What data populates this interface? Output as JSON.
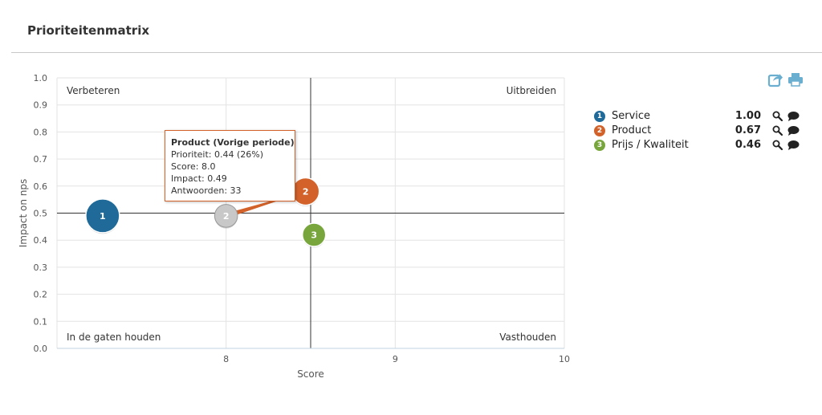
{
  "page": {
    "title": "Prioriteitenmatrix"
  },
  "colors": {
    "service": "#1f6a99",
    "product": "#d2622a",
    "product_previous": "#c8c8c8",
    "prijs_kwaliteit": "#78a63d",
    "toolbar": "#6aaed0"
  },
  "toolbar": {
    "icons": [
      "share-icon",
      "print-icon"
    ]
  },
  "chart_data": {
    "type": "scatter",
    "xlabel": "Score",
    "ylabel": "Impact on nps",
    "xlim": [
      7.0,
      10
    ],
    "ylim": [
      0.0,
      1.0
    ],
    "x_ticks": [
      "8",
      "9",
      "10"
    ],
    "y_ticks": [
      "0.0",
      "0.1",
      "0.2",
      "0.3",
      "0.4",
      "0.5",
      "0.6",
      "0.7",
      "0.8",
      "0.9",
      "1.0"
    ],
    "grid": true,
    "reference_lines": {
      "x": 8.5,
      "y": 0.5
    },
    "quadrants": {
      "top_left": "Verbeteren",
      "top_right": "Uitbreiden",
      "bottom_left": "In de gaten houden",
      "bottom_right": "Vasthouden"
    },
    "points": [
      {
        "label": "1",
        "x": 7.27,
        "y": 0.49,
        "size": 1.0,
        "color_key": "service"
      },
      {
        "label": "2",
        "x": 8.0,
        "y": 0.49,
        "size": 0.44,
        "color_key": "product_previous",
        "previous": true
      },
      {
        "label": "2",
        "x": 8.47,
        "y": 0.58,
        "size": 0.67,
        "color_key": "product"
      },
      {
        "label": "3",
        "x": 8.52,
        "y": 0.42,
        "size": 0.46,
        "color_key": "prijs_kwaliteit"
      }
    ],
    "trail": {
      "from": 1,
      "to": 2
    },
    "legend_position": "right"
  },
  "legend": {
    "items": [
      {
        "number": "1",
        "label": "Service",
        "value": "1.00",
        "color_key": "service"
      },
      {
        "number": "2",
        "label": "Product",
        "value": "0.67",
        "color_key": "product"
      },
      {
        "number": "3",
        "label": "Prijs / Kwaliteit",
        "value": "0.46",
        "color_key": "prijs_kwaliteit"
      }
    ]
  },
  "tooltip": {
    "title": "Product (Vorige periode)",
    "lines": [
      "Prioriteit: 0.44 (26%)",
      "Score: 8.0",
      "Impact: 0.49",
      "Antwoorden: 33"
    ]
  }
}
